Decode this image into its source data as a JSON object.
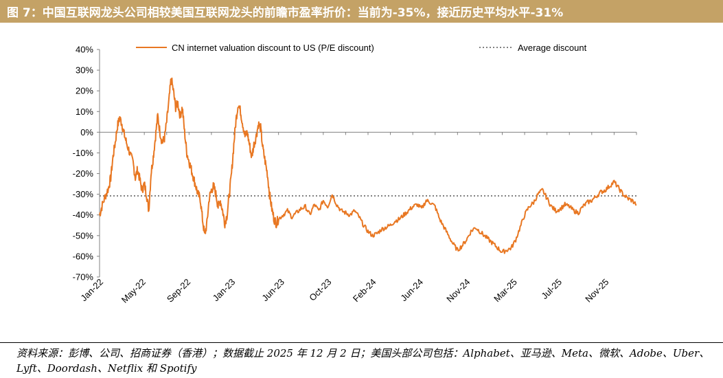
{
  "title": "图 7：中国互联网龙头公司相较美国互联网龙头的前瞻市盈率折价：当前为-35%，接近历史平均水平-31%",
  "chart_data": {
    "type": "line",
    "series": [
      {
        "name": "CN internet valuation discount to US (P/E discount)",
        "color": "#e87722",
        "points": [
          [
            0,
            -40
          ],
          [
            0.1,
            -36
          ],
          [
            0.25,
            -31
          ],
          [
            0.4,
            -27
          ],
          [
            0.5,
            -22
          ],
          [
            0.6,
            -12
          ],
          [
            0.7,
            -5
          ],
          [
            0.8,
            3
          ],
          [
            0.9,
            7
          ],
          [
            1.0,
            4
          ],
          [
            1.1,
            -1
          ],
          [
            1.2,
            -5
          ],
          [
            1.35,
            -10
          ],
          [
            1.5,
            -15
          ],
          [
            1.6,
            -22
          ],
          [
            1.7,
            -18
          ],
          [
            1.8,
            -23
          ],
          [
            1.9,
            -28
          ],
          [
            2.0,
            -25
          ],
          [
            2.1,
            -30
          ],
          [
            2.2,
            -38
          ],
          [
            2.3,
            -20
          ],
          [
            2.4,
            -12
          ],
          [
            2.5,
            -2
          ],
          [
            2.6,
            8
          ],
          [
            2.7,
            0
          ],
          [
            2.8,
            -5
          ],
          [
            2.9,
            -3
          ],
          [
            3.0,
            5
          ],
          [
            3.1,
            15
          ],
          [
            3.2,
            26
          ],
          [
            3.3,
            20
          ],
          [
            3.4,
            12
          ],
          [
            3.5,
            14
          ],
          [
            3.6,
            8
          ],
          [
            3.7,
            12
          ],
          [
            3.8,
            0
          ],
          [
            3.9,
            -10
          ],
          [
            4.0,
            -14
          ],
          [
            4.1,
            -18
          ],
          [
            4.2,
            -22
          ],
          [
            4.3,
            -26
          ],
          [
            4.4,
            -30
          ],
          [
            4.5,
            -32
          ],
          [
            4.6,
            -42
          ],
          [
            4.7,
            -50
          ],
          [
            4.8,
            -44
          ],
          [
            4.9,
            -32
          ],
          [
            5.0,
            -28
          ],
          [
            5.1,
            -26
          ],
          [
            5.2,
            -30
          ],
          [
            5.3,
            -36
          ],
          [
            5.4,
            -33
          ],
          [
            5.5,
            -38
          ],
          [
            5.6,
            -44
          ],
          [
            5.7,
            -40
          ],
          [
            5.8,
            -30
          ],
          [
            5.9,
            -20
          ],
          [
            6.0,
            -6
          ],
          [
            6.1,
            6
          ],
          [
            6.2,
            14
          ],
          [
            6.3,
            10
          ],
          [
            6.4,
            4
          ],
          [
            6.5,
            -2
          ],
          [
            6.6,
            0
          ],
          [
            6.7,
            -6
          ],
          [
            6.8,
            -12
          ],
          [
            6.9,
            -6
          ],
          [
            7.0,
            -2
          ],
          [
            7.1,
            4
          ],
          [
            7.2,
            2
          ],
          [
            7.3,
            -8
          ],
          [
            7.4,
            -14
          ],
          [
            7.5,
            -20
          ],
          [
            7.6,
            -30
          ],
          [
            7.7,
            -37
          ],
          [
            7.8,
            -42
          ],
          [
            7.9,
            -44
          ],
          [
            8.0,
            -42
          ],
          [
            8.2,
            -40
          ],
          [
            8.4,
            -38
          ],
          [
            8.6,
            -41
          ],
          [
            8.8,
            -39
          ],
          [
            9.0,
            -37
          ],
          [
            9.2,
            -36
          ],
          [
            9.4,
            -40
          ],
          [
            9.6,
            -35
          ],
          [
            9.8,
            -38
          ],
          [
            10.0,
            -33
          ],
          [
            10.2,
            -36
          ],
          [
            10.4,
            -30
          ],
          [
            10.6,
            -35
          ],
          [
            10.8,
            -38
          ],
          [
            11.0,
            -39
          ],
          [
            11.2,
            -40
          ],
          [
            11.4,
            -38
          ],
          [
            11.6,
            -41
          ],
          [
            11.8,
            -45
          ],
          [
            12.0,
            -48
          ],
          [
            12.2,
            -50
          ],
          [
            12.4,
            -49
          ],
          [
            12.6,
            -47
          ],
          [
            12.8,
            -46
          ],
          [
            13.0,
            -45
          ],
          [
            13.2,
            -43
          ],
          [
            13.4,
            -42
          ],
          [
            13.6,
            -40
          ],
          [
            13.8,
            -38
          ],
          [
            14.0,
            -36
          ],
          [
            14.2,
            -35
          ],
          [
            14.4,
            -37
          ],
          [
            14.6,
            -33
          ],
          [
            14.8,
            -34
          ],
          [
            15.0,
            -36
          ],
          [
            15.2,
            -42
          ],
          [
            15.4,
            -46
          ],
          [
            15.6,
            -50
          ],
          [
            15.8,
            -54
          ],
          [
            16.0,
            -57
          ],
          [
            16.2,
            -55
          ],
          [
            16.4,
            -52
          ],
          [
            16.6,
            -48
          ],
          [
            16.8,
            -46
          ],
          [
            17.0,
            -48
          ],
          [
            17.2,
            -50
          ],
          [
            17.4,
            -52
          ],
          [
            17.6,
            -54
          ],
          [
            17.8,
            -56
          ],
          [
            18.0,
            -58
          ],
          [
            18.2,
            -57
          ],
          [
            18.4,
            -56
          ],
          [
            18.6,
            -52
          ],
          [
            18.8,
            -46
          ],
          [
            19.0,
            -40
          ],
          [
            19.2,
            -36
          ],
          [
            19.4,
            -34
          ],
          [
            19.6,
            -30
          ],
          [
            19.8,
            -28
          ],
          [
            20.0,
            -32
          ],
          [
            20.2,
            -36
          ],
          [
            20.4,
            -38
          ],
          [
            20.6,
            -37
          ],
          [
            20.8,
            -35
          ],
          [
            21.0,
            -36
          ],
          [
            21.2,
            -38
          ],
          [
            21.4,
            -39
          ],
          [
            21.6,
            -36
          ],
          [
            21.8,
            -34
          ],
          [
            22.0,
            -33
          ],
          [
            22.2,
            -31
          ],
          [
            22.4,
            -29
          ],
          [
            22.6,
            -28
          ],
          [
            22.8,
            -26
          ],
          [
            23.0,
            -24
          ],
          [
            23.2,
            -27
          ],
          [
            23.4,
            -30
          ],
          [
            23.6,
            -32
          ],
          [
            23.8,
            -33
          ],
          [
            24.0,
            -35
          ]
        ]
      },
      {
        "name": "Average discount",
        "color": "#808080",
        "dotted": true,
        "value": -30.8
      }
    ],
    "x_tick_labels": [
      "Jan-22",
      "May-22",
      "Sep-22",
      "Jan-23",
      "Jun-23",
      "Oct-23",
      "Feb-24",
      "Jun-24",
      "Nov-24",
      "Mar-25",
      "Jul-25",
      "Nov-25"
    ],
    "x_tick_positions": [
      0,
      1.9,
      3.9,
      5.9,
      8.1,
      10.2,
      12.2,
      14.3,
      16.4,
      18.5,
      20.5,
      22.6
    ],
    "x_range": [
      0,
      24
    ],
    "y_tick_labels": [
      "40%",
      "30%",
      "20%",
      "10%",
      "0%",
      "-10%",
      "-20%",
      "-30%",
      "-40%",
      "-50%",
      "-60%",
      "-70%"
    ],
    "y_ticks": [
      40,
      30,
      20,
      10,
      0,
      -10,
      -20,
      -30,
      -40,
      -50,
      -60,
      -70
    ],
    "ylim": [
      -70,
      40
    ],
    "legend": [
      "CN internet valuation discount to US (P/E discount)",
      "Average discount"
    ]
  },
  "source": {
    "text": "资料来源：彭博、公司、招商证券（香港）；数据截止 2025 年 12 月 2 日；美国头部公司包括：Alphabet、亚马逊、Meta、微软、Adobe、Uber、Lyft、Doordash、Netflix 和 Spotify"
  }
}
